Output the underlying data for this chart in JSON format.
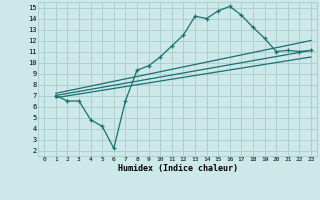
{
  "xlabel": "Humidex (Indice chaleur)",
  "bg_color": "#cce8e8",
  "grid_color": "#aacccc",
  "line_color": "#1a7070",
  "xlim": [
    -0.5,
    23.5
  ],
  "ylim": [
    1.5,
    15.5
  ],
  "xticks": [
    0,
    1,
    2,
    3,
    4,
    5,
    6,
    7,
    8,
    9,
    10,
    11,
    12,
    13,
    14,
    15,
    16,
    17,
    18,
    19,
    20,
    21,
    22,
    23
  ],
  "yticks": [
    2,
    3,
    4,
    5,
    6,
    7,
    8,
    9,
    10,
    11,
    12,
    13,
    14,
    15
  ],
  "line1_x": [
    1,
    2,
    3,
    4,
    5,
    6,
    7,
    8,
    9,
    10,
    11,
    12,
    13,
    14,
    15,
    16,
    17,
    18,
    19,
    20,
    21,
    22,
    23
  ],
  "line1_y": [
    7.0,
    6.5,
    6.5,
    4.8,
    4.2,
    2.2,
    6.5,
    9.3,
    9.7,
    10.5,
    11.5,
    12.5,
    14.2,
    14.0,
    14.7,
    15.1,
    14.3,
    13.2,
    12.2,
    11.0,
    11.1,
    11.0,
    11.1
  ],
  "line2_x": [
    1,
    23
  ],
  "line2_y": [
    7.0,
    11.1
  ],
  "line3_x": [
    1,
    23
  ],
  "line3_y": [
    7.2,
    12.0
  ],
  "line4_x": [
    1,
    23
  ],
  "line4_y": [
    6.8,
    10.5
  ]
}
